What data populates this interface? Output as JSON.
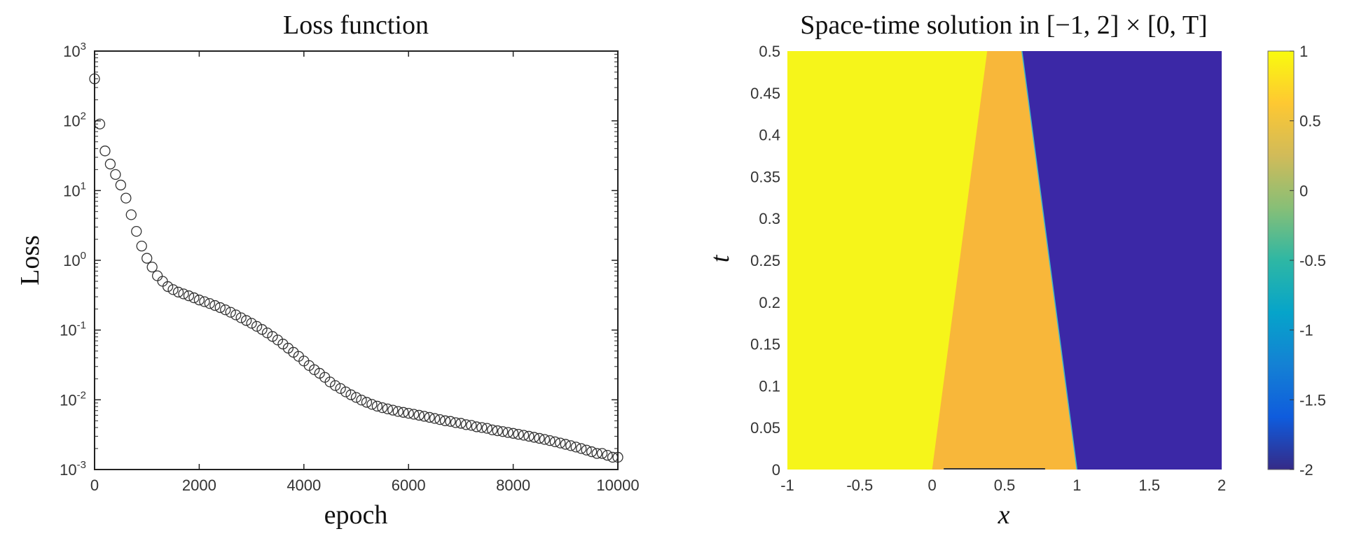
{
  "chart_data": [
    {
      "type": "scatter",
      "title": "Loss function",
      "xlabel": "epoch",
      "ylabel": "Loss",
      "xlim": [
        0,
        10000
      ],
      "ylim": [
        0.001,
        1000
      ],
      "yscale": "log",
      "grid": false,
      "marker": "open-circle",
      "marker_color": "#333333",
      "x_ticks": [
        "0",
        "2000",
        "4000",
        "6000",
        "8000",
        "10000"
      ],
      "y_ticks": [
        {
          "base": "10",
          "exp": "3"
        },
        {
          "base": "10",
          "exp": "2"
        },
        {
          "base": "10",
          "exp": "1"
        },
        {
          "base": "10",
          "exp": "0"
        },
        {
          "base": "10",
          "exp": "-1"
        },
        {
          "base": "10",
          "exp": "-2"
        },
        {
          "base": "10",
          "exp": "-3"
        }
      ],
      "x": [
        0,
        100,
        200,
        300,
        400,
        500,
        600,
        700,
        800,
        900,
        1000,
        1100,
        1200,
        1300,
        1400,
        1500,
        1600,
        1700,
        1800,
        1900,
        2000,
        2100,
        2200,
        2300,
        2400,
        2500,
        2600,
        2700,
        2800,
        2900,
        3000,
        3100,
        3200,
        3300,
        3400,
        3500,
        3600,
        3700,
        3800,
        3900,
        4000,
        4100,
        4200,
        4300,
        4400,
        4500,
        4600,
        4700,
        4800,
        4900,
        5000,
        5100,
        5200,
        5300,
        5400,
        5500,
        5600,
        5700,
        5800,
        5900,
        6000,
        6100,
        6200,
        6300,
        6400,
        6500,
        6600,
        6700,
        6800,
        6900,
        7000,
        7100,
        7200,
        7300,
        7400,
        7500,
        7600,
        7700,
        7800,
        7900,
        8000,
        8100,
        8200,
        8300,
        8400,
        8500,
        8600,
        8700,
        8800,
        8900,
        9000,
        9100,
        9200,
        9300,
        9400,
        9500,
        9600,
        9700,
        9800,
        9900,
        10000
      ],
      "y": [
        400,
        90,
        37,
        24,
        17,
        12,
        7.8,
        4.5,
        2.6,
        1.6,
        1.07,
        0.8,
        0.6,
        0.5,
        0.42,
        0.38,
        0.35,
        0.33,
        0.31,
        0.29,
        0.27,
        0.255,
        0.24,
        0.225,
        0.21,
        0.195,
        0.18,
        0.165,
        0.15,
        0.137,
        0.125,
        0.113,
        0.102,
        0.091,
        0.081,
        0.072,
        0.063,
        0.055,
        0.048,
        0.042,
        0.036,
        0.031,
        0.027,
        0.024,
        0.021,
        0.018,
        0.016,
        0.0145,
        0.013,
        0.0118,
        0.0108,
        0.0099,
        0.0092,
        0.0086,
        0.0081,
        0.0077,
        0.0074,
        0.0071,
        0.0068,
        0.0066,
        0.0064,
        0.0062,
        0.006,
        0.0058,
        0.0056,
        0.0054,
        0.0052,
        0.005,
        0.0049,
        0.0047,
        0.0046,
        0.0044,
        0.0043,
        0.0041,
        0.004,
        0.0039,
        0.0037,
        0.0036,
        0.0035,
        0.0034,
        0.0033,
        0.0032,
        0.0031,
        0.003,
        0.0029,
        0.0028,
        0.0027,
        0.0026,
        0.0025,
        0.0024,
        0.0023,
        0.0022,
        0.0021,
        0.002,
        0.0019,
        0.0018,
        0.0017,
        0.0017,
        0.0016,
        0.0015,
        0.0015
      ]
    },
    {
      "type": "heatmap",
      "title": "Space-time solution in [−1, 2] × [0, T]",
      "xlabel": "x",
      "ylabel": "t",
      "xlim": [
        -1,
        2
      ],
      "ylim": [
        0,
        0.5
      ],
      "x_ticks": [
        "-1",
        "-0.5",
        "0",
        "0.5",
        "1",
        "1.5",
        "2"
      ],
      "y_ticks": [
        "0",
        "0.05",
        "0.1",
        "0.15",
        "0.2",
        "0.25",
        "0.3",
        "0.35",
        "0.4",
        "0.45",
        "0.5"
      ],
      "colormap": "parula",
      "clim": [
        -2,
        1
      ],
      "colorbar_ticks": [
        "1",
        "0.5",
        "0",
        "-0.5",
        "-1",
        "-1.5",
        "-2"
      ],
      "colorbar_position": "right",
      "regions": [
        {
          "value": 1,
          "color": "#f6f51a",
          "boundary_right": {
            "t0_x": 0,
            "t05_x": 0.38
          }
        },
        {
          "value": 0.6,
          "color": "#f8b73a",
          "boundary_right": {
            "t0_x": 1,
            "t05_x": 0.62
          }
        },
        {
          "value": -2,
          "color": "#3b28a6"
        }
      ],
      "colormap_stops": [
        "#352a87",
        "#0f5cdd",
        "#1481d4",
        "#06a4ca",
        "#2eb7a4",
        "#87bf77",
        "#d1bb59",
        "#fec832",
        "#f9fb0e"
      ]
    }
  ]
}
